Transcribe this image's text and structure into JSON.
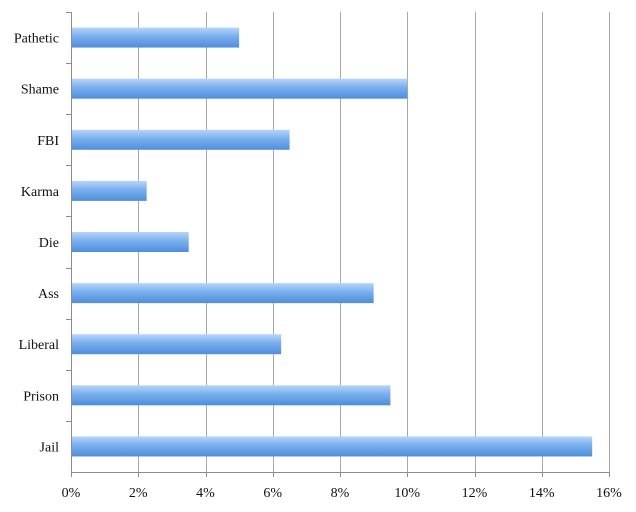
{
  "chart_data": {
    "type": "bar",
    "orientation": "horizontal",
    "categories": [
      "Pathetic",
      "Shame",
      "FBI",
      "Karma",
      "Die",
      "Ass",
      "Liberal",
      "Prison",
      "Jail"
    ],
    "values": [
      5.0,
      10.0,
      6.5,
      2.25,
      3.5,
      9.0,
      6.25,
      9.5,
      15.5
    ],
    "value_unit": "%",
    "xlim": [
      0,
      16
    ],
    "xticks": [
      0,
      2,
      4,
      6,
      8,
      10,
      12,
      14,
      16
    ],
    "xtick_labels": [
      "0%",
      "2%",
      "4%",
      "6%",
      "8%",
      "10%",
      "12%",
      "14%",
      "16%"
    ],
    "grid": true,
    "legend": "none",
    "colors": {
      "bar_light": "#b8d5fa",
      "bar_mid": "#78aeee",
      "bar_dark": "#4f8ddb"
    }
  }
}
